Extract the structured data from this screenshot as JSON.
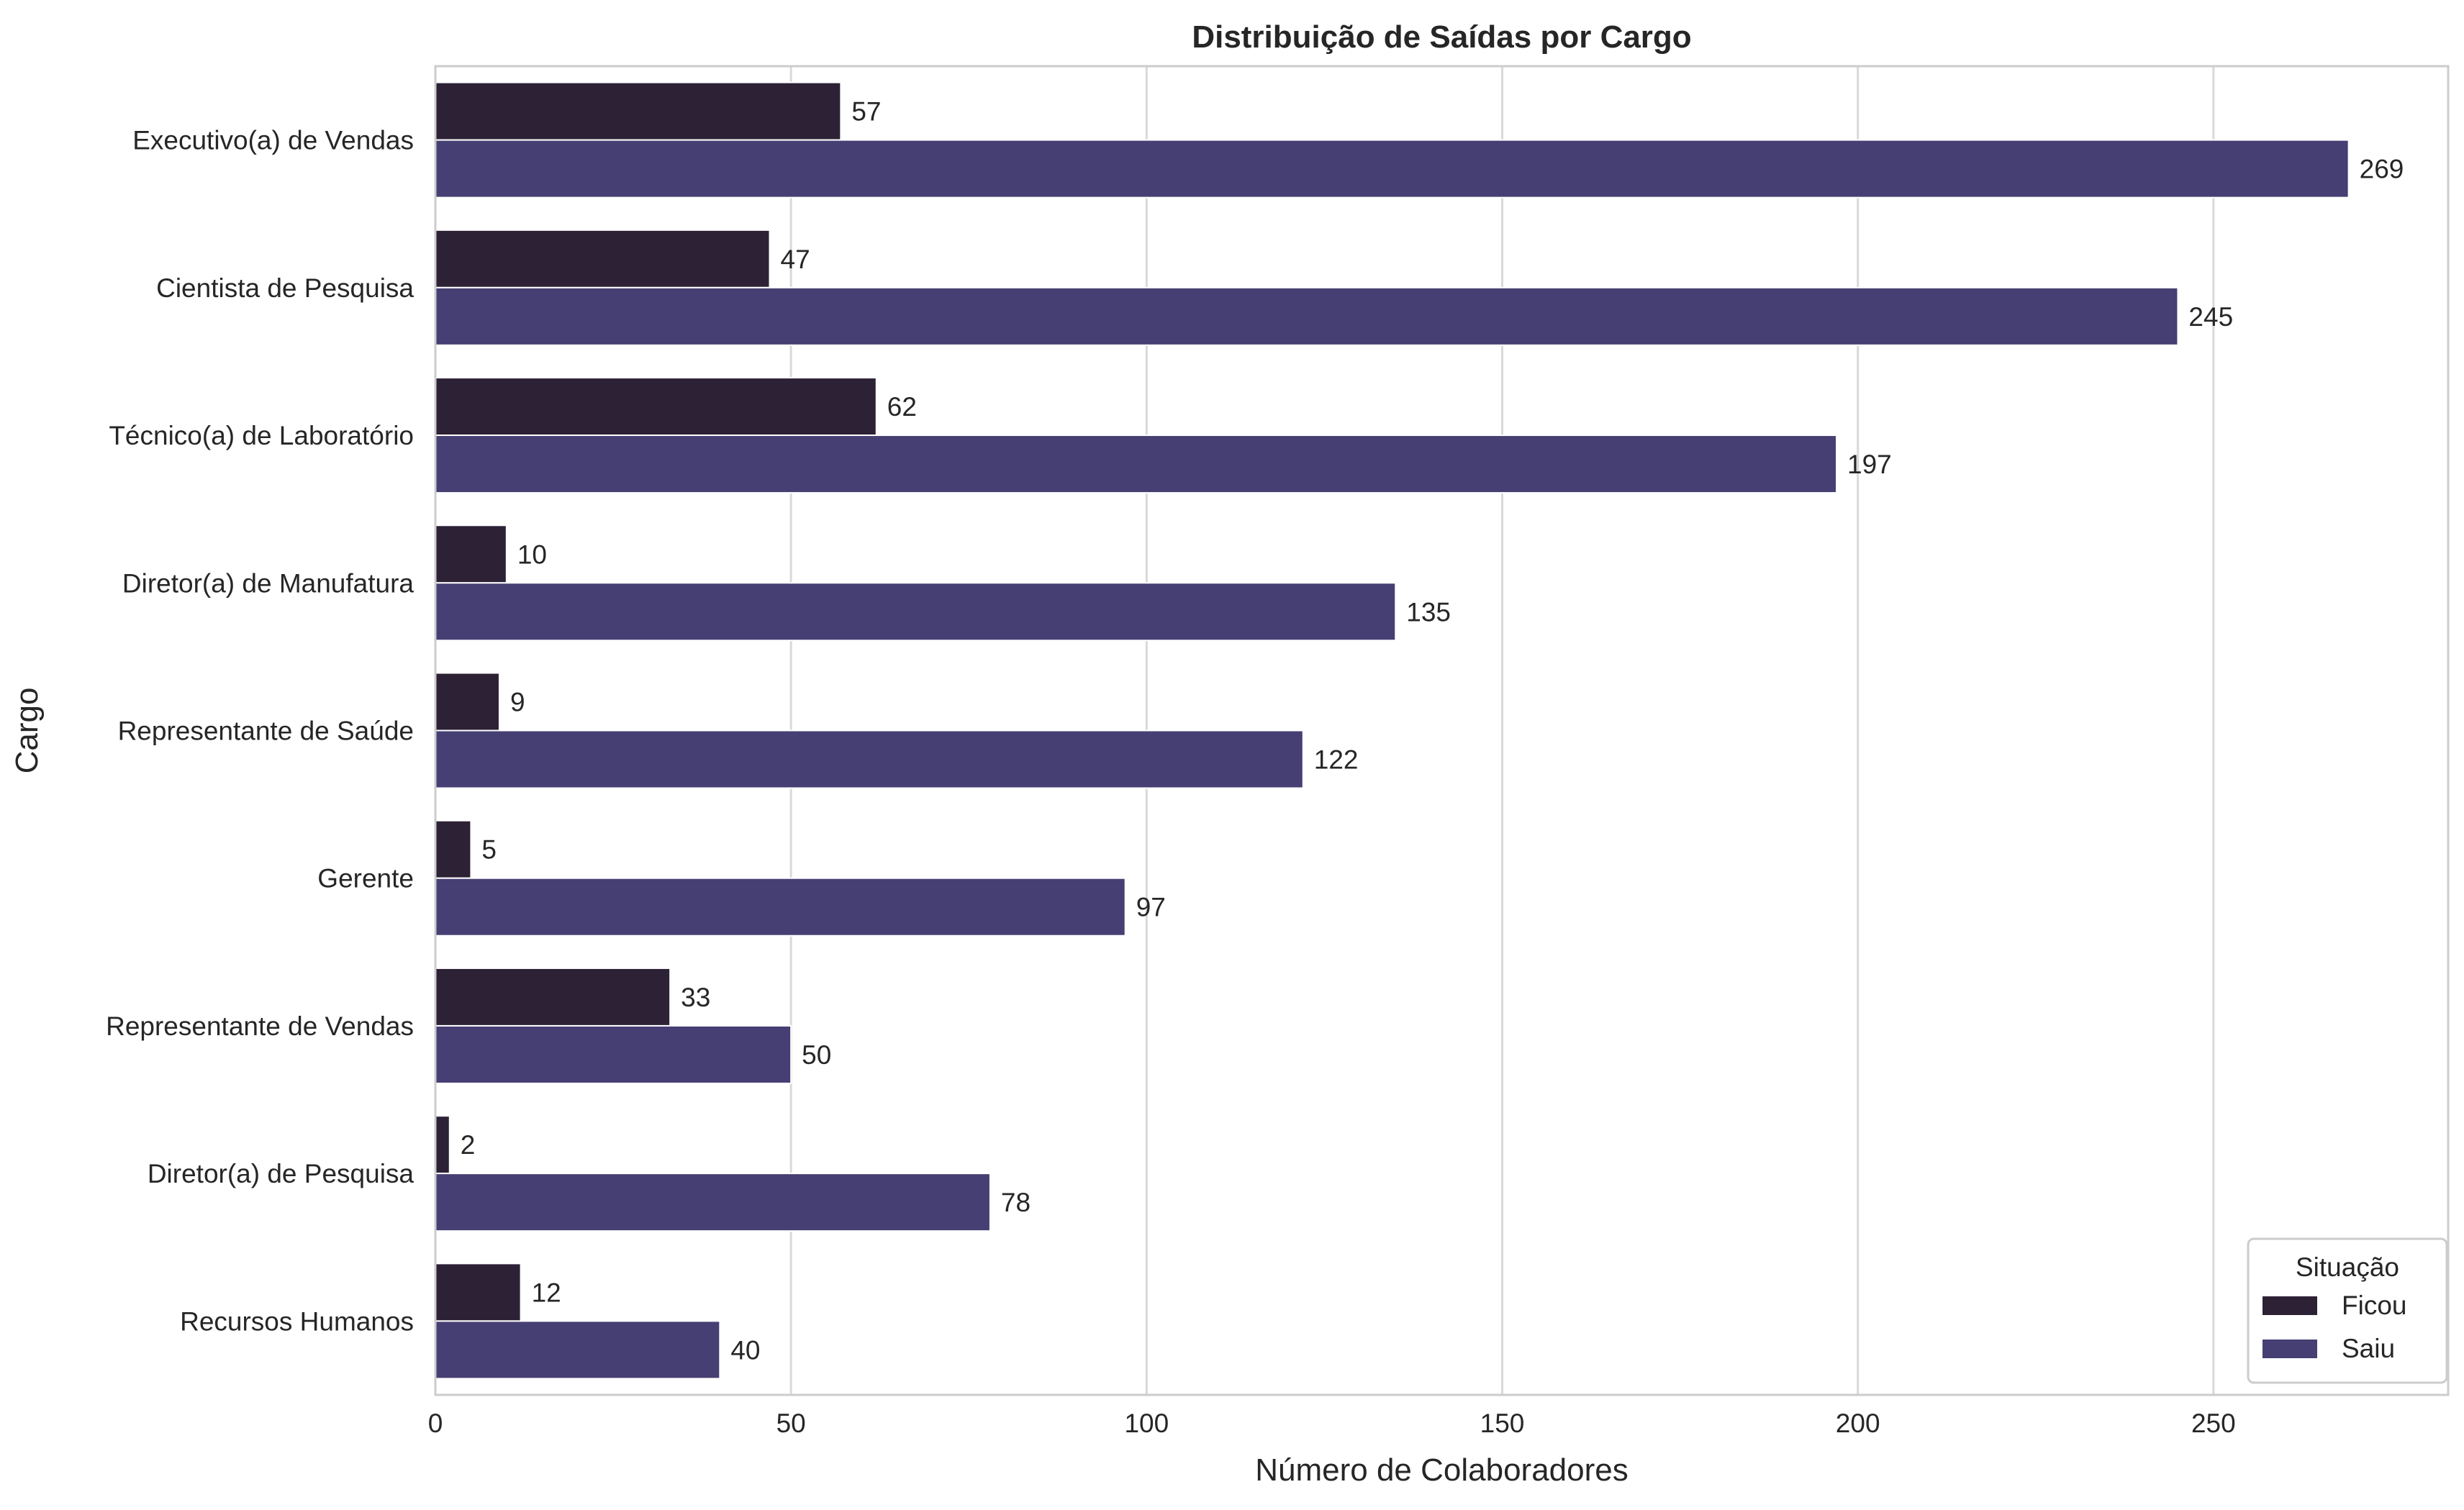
{
  "chart_data": {
    "type": "bar",
    "orientation": "horizontal",
    "title": "Distribuição de Saídas por Cargo",
    "xlabel": "Número de Colaboradores",
    "ylabel": "Cargo",
    "xlim": [
      0,
      283
    ],
    "xticks": [
      0,
      50,
      100,
      150,
      200,
      250
    ],
    "grid": "x",
    "categories": [
      "Executivo(a) de Vendas",
      "Cientista de Pesquisa",
      "Técnico(a) de Laboratório",
      "Diretor(a) de Manufatura",
      "Representante de Saúde",
      "Gerente",
      "Representante de Vendas",
      "Diretor(a) de Pesquisa",
      "Recursos Humanos"
    ],
    "series": [
      {
        "name": "Ficou",
        "color": "#2d2136",
        "values": [
          57,
          47,
          62,
          10,
          9,
          5,
          33,
          2,
          12
        ]
      },
      {
        "name": "Saiu",
        "color": "#463f73",
        "values": [
          269,
          245,
          197,
          135,
          122,
          97,
          50,
          78,
          40
        ]
      }
    ],
    "legend": {
      "title": "Situação",
      "placement": "lower-right"
    },
    "data_labels": true
  }
}
